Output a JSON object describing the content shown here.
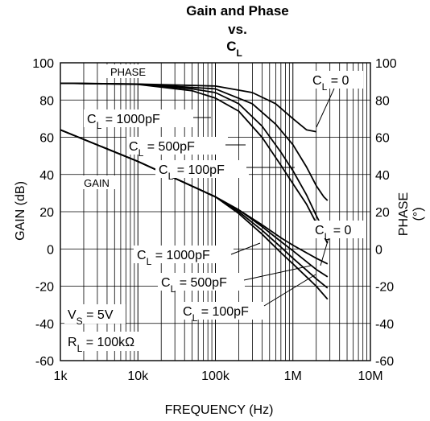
{
  "chart_data": {
    "type": "line",
    "title_lines": [
      "Gain and Phase",
      "vs."
    ],
    "title_cl": {
      "main": "C",
      "sub": "L"
    },
    "xlabel": "FREQUENCY (Hz)",
    "ylabel_left": "GAIN (dB)",
    "ylabel_right": "PHASE",
    "ylabel_right_unit": "(°)",
    "x_scale": "log",
    "xlim": [
      1000,
      10000000
    ],
    "ylim_left": [
      -60,
      100
    ],
    "ylim_right": [
      -60,
      100
    ],
    "x_ticks": [
      {
        "value": 1000,
        "label": "1k"
      },
      {
        "value": 10000,
        "label": "10k"
      },
      {
        "value": 100000,
        "label": "100k"
      },
      {
        "value": 1000000,
        "label": "1M"
      },
      {
        "value": 10000000,
        "label": "10M"
      }
    ],
    "y_ticks": [
      -60,
      -40,
      -20,
      0,
      20,
      40,
      60,
      80,
      100
    ],
    "grid": true,
    "series": [
      {
        "name": "PHASE C_L = 0",
        "axis": "phase",
        "points": [
          [
            1000,
            89
          ],
          [
            10000,
            88.6
          ],
          [
            100000,
            87.5
          ],
          [
            300000,
            84
          ],
          [
            600000,
            78
          ],
          [
            1000000,
            70
          ],
          [
            1500000,
            64
          ],
          [
            2000000,
            63
          ]
        ]
      },
      {
        "name": "PHASE C_L = 100pF",
        "axis": "phase",
        "points": [
          [
            1000,
            89
          ],
          [
            10000,
            88.6
          ],
          [
            100000,
            86
          ],
          [
            300000,
            78
          ],
          [
            600000,
            67
          ],
          [
            1000000,
            56
          ],
          [
            1500000,
            44
          ],
          [
            2000000,
            34
          ],
          [
            2500000,
            28
          ],
          [
            2800000,
            26
          ]
        ]
      },
      {
        "name": "PHASE C_L = 500pF",
        "axis": "phase",
        "points": [
          [
            1000,
            89
          ],
          [
            10000,
            88.5
          ],
          [
            50000,
            86
          ],
          [
            100000,
            84
          ],
          [
            200000,
            78
          ],
          [
            400000,
            66
          ],
          [
            700000,
            52
          ],
          [
            1000000,
            42
          ],
          [
            1500000,
            29
          ],
          [
            2000000,
            18
          ],
          [
            2500000,
            10
          ],
          [
            2800000,
            6
          ]
        ]
      },
      {
        "name": "PHASE C_L = 1000pF",
        "axis": "phase",
        "points": [
          [
            1000,
            89
          ],
          [
            10000,
            88.4
          ],
          [
            50000,
            85
          ],
          [
            100000,
            81
          ],
          [
            200000,
            74
          ],
          [
            400000,
            60
          ],
          [
            700000,
            45
          ],
          [
            1000000,
            35
          ],
          [
            1500000,
            24
          ],
          [
            2000000,
            14
          ],
          [
            2500000,
            7
          ],
          [
            2800000,
            3
          ]
        ]
      },
      {
        "name": "GAIN C_L = 0",
        "axis": "gain",
        "points": [
          [
            1000,
            64
          ],
          [
            10000,
            47
          ],
          [
            100000,
            28
          ],
          [
            200000,
            21
          ],
          [
            400000,
            13
          ],
          [
            700000,
            6
          ],
          [
            1000000,
            2
          ],
          [
            2000000,
            -5
          ],
          [
            2800000,
            -8
          ]
        ]
      },
      {
        "name": "GAIN C_L = 100pF",
        "axis": "gain",
        "points": [
          [
            1000,
            64
          ],
          [
            10000,
            47
          ],
          [
            100000,
            28
          ],
          [
            200000,
            21
          ],
          [
            400000,
            12
          ],
          [
            700000,
            4
          ],
          [
            1000000,
            -1
          ],
          [
            2000000,
            -11
          ],
          [
            2800000,
            -15
          ]
        ]
      },
      {
        "name": "GAIN C_L = 500pF",
        "axis": "gain",
        "points": [
          [
            1000,
            64
          ],
          [
            10000,
            47
          ],
          [
            100000,
            28
          ],
          [
            200000,
            20
          ],
          [
            400000,
            10
          ],
          [
            700000,
            1
          ],
          [
            1000000,
            -5
          ],
          [
            2000000,
            -16
          ],
          [
            2800000,
            -21
          ]
        ]
      },
      {
        "name": "GAIN C_L = 1000pF",
        "axis": "gain",
        "points": [
          [
            1000,
            64
          ],
          [
            10000,
            47
          ],
          [
            100000,
            28
          ],
          [
            200000,
            19
          ],
          [
            400000,
            8
          ],
          [
            700000,
            -2
          ],
          [
            1000000,
            -8
          ],
          [
            2000000,
            -20
          ],
          [
            2800000,
            -27
          ]
        ]
      }
    ],
    "annotations": {
      "phase_label": "PHASE",
      "gain_label": "GAIN",
      "cl_phase": [
        {
          "main": "C",
          "sub": "L",
          "rest": " = 0"
        },
        {
          "main": "C",
          "sub": "L",
          "rest": " = 1000pF"
        },
        {
          "main": "C",
          "sub": "L",
          "rest": " = 500pF"
        },
        {
          "main": "C",
          "sub": "L",
          "rest": " = 100pF"
        }
      ],
      "cl_gain": [
        {
          "main": "C",
          "sub": "L",
          "rest": " = 0"
        },
        {
          "main": "C",
          "sub": "L",
          "rest": " = 1000pF"
        },
        {
          "main": "C",
          "sub": "L",
          "rest": " = 500pF"
        },
        {
          "main": "C",
          "sub": "L",
          "rest": " = 100pF"
        }
      ],
      "vs": {
        "main": "V",
        "sub": "S",
        "rest": " = 5V"
      },
      "rl": {
        "main": "R",
        "sub": "L",
        "rest": " = 100kΩ"
      }
    }
  }
}
